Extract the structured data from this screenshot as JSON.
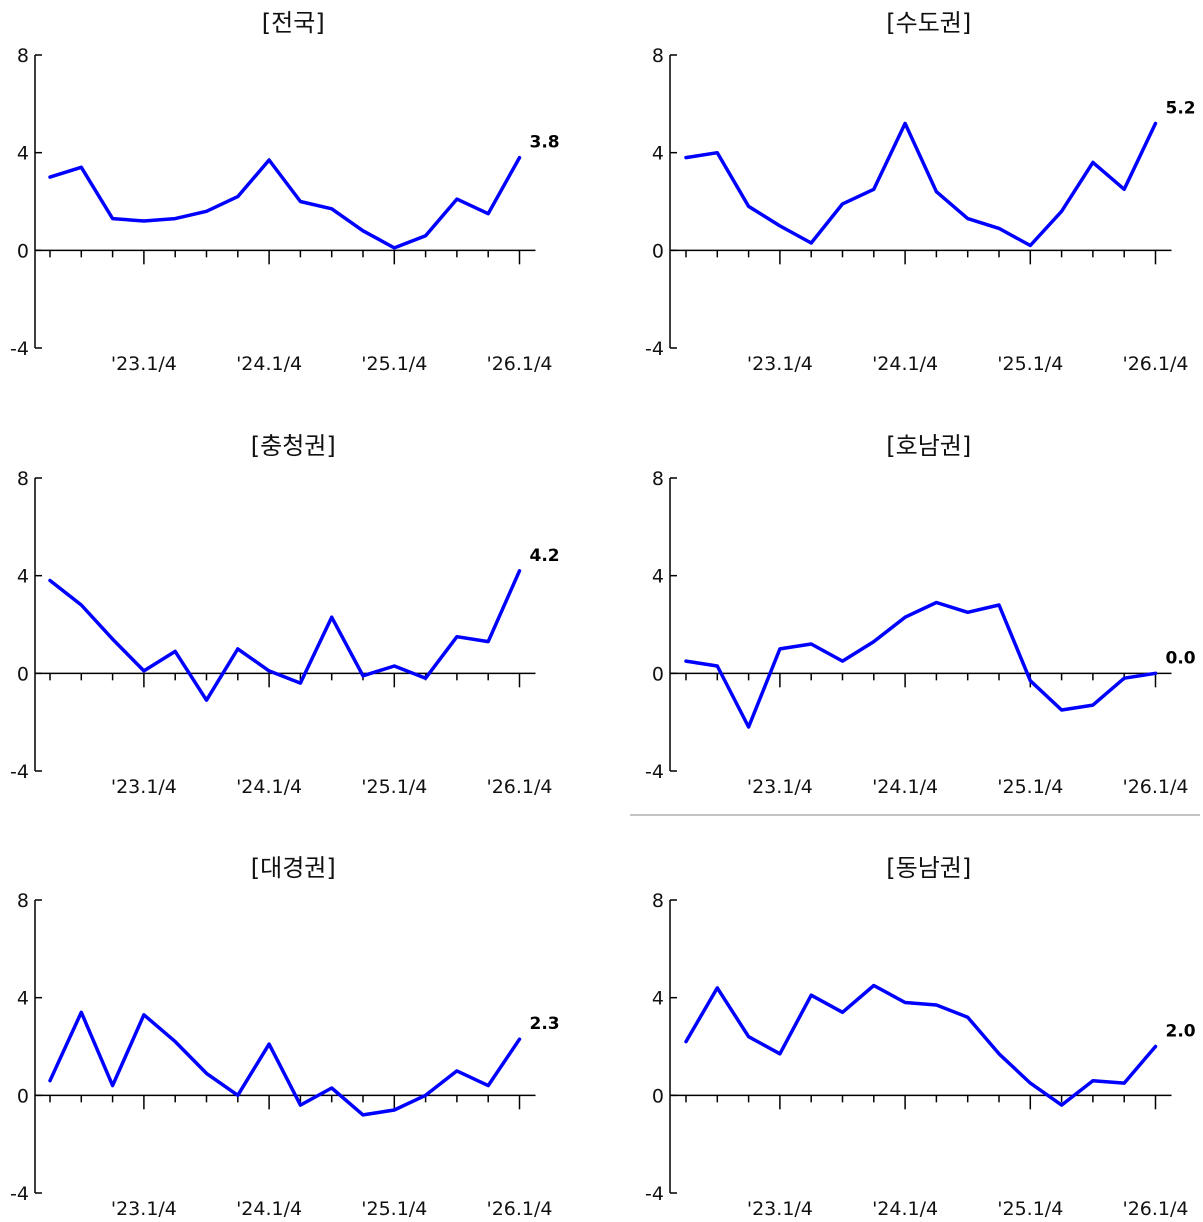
{
  "chart_data": [
    {
      "type": "line",
      "title": "[전국]",
      "ylim": [
        -4,
        8
      ],
      "yticks": [
        "8",
        "4",
        "0",
        "-4"
      ],
      "x": [
        "'22.2/4",
        "'22.3/4",
        "'22.4/4",
        "'23.1/4",
        "'23.2/4",
        "'23.3/4",
        "'23.4/4",
        "'24.1/4",
        "'24.2/4",
        "'24.3/4",
        "'24.4/4",
        "'25.1/4",
        "'25.2/4",
        "'25.3/4",
        "'25.4/4",
        "'26.1/4"
      ],
      "xticklabels": [
        "'23.1/4",
        "'24.1/4",
        "'25.1/4",
        "'26.1/4"
      ],
      "values": [
        3.0,
        3.4,
        1.3,
        1.2,
        1.3,
        1.6,
        2.2,
        3.7,
        2.0,
        1.7,
        0.8,
        0.1,
        0.6,
        2.1,
        1.5,
        3.8
      ],
      "end_label": "3.8"
    },
    {
      "type": "line",
      "title": "[수도권]",
      "ylim": [
        -4,
        8
      ],
      "yticks": [
        "8",
        "4",
        "0",
        "-4"
      ],
      "x": [
        "'22.2/4",
        "'22.3/4",
        "'22.4/4",
        "'23.1/4",
        "'23.2/4",
        "'23.3/4",
        "'23.4/4",
        "'24.1/4",
        "'24.2/4",
        "'24.3/4",
        "'24.4/4",
        "'25.1/4",
        "'25.2/4",
        "'25.3/4",
        "'25.4/4",
        "'26.1/4"
      ],
      "xticklabels": [
        "'23.1/4",
        "'24.1/4",
        "'25.1/4",
        "'26.1/4"
      ],
      "values": [
        3.8,
        4.0,
        1.8,
        1.0,
        0.3,
        1.9,
        2.5,
        5.2,
        2.4,
        1.3,
        0.9,
        0.2,
        1.6,
        3.6,
        2.5,
        5.2
      ],
      "end_label": "5.2"
    },
    {
      "type": "line",
      "title": "[충청권]",
      "ylim": [
        -4,
        8
      ],
      "yticks": [
        "8",
        "4",
        "0",
        "-4"
      ],
      "x": [
        "'22.2/4",
        "'22.3/4",
        "'22.4/4",
        "'23.1/4",
        "'23.2/4",
        "'23.3/4",
        "'23.4/4",
        "'24.1/4",
        "'24.2/4",
        "'24.3/4",
        "'24.4/4",
        "'25.1/4",
        "'25.2/4",
        "'25.3/4",
        "'25.4/4",
        "'26.1/4"
      ],
      "xticklabels": [
        "'23.1/4",
        "'24.1/4",
        "'25.1/4",
        "'26.1/4"
      ],
      "values": [
        3.8,
        2.8,
        1.4,
        0.1,
        0.9,
        -1.1,
        1.0,
        0.1,
        -0.4,
        2.3,
        -0.1,
        0.3,
        -0.2,
        1.5,
        1.3,
        4.2
      ],
      "end_label": "4.2"
    },
    {
      "type": "line",
      "title": "[호남권]",
      "ylim": [
        -4,
        8
      ],
      "yticks": [
        "8",
        "4",
        "0",
        "-4"
      ],
      "x": [
        "'22.2/4",
        "'22.3/4",
        "'22.4/4",
        "'23.1/4",
        "'23.2/4",
        "'23.3/4",
        "'23.4/4",
        "'24.1/4",
        "'24.2/4",
        "'24.3/4",
        "'24.4/4",
        "'25.1/4",
        "'25.2/4",
        "'25.3/4",
        "'25.4/4",
        "'26.1/4"
      ],
      "xticklabels": [
        "'23.1/4",
        "'24.1/4",
        "'25.1/4",
        "'26.1/4"
      ],
      "values": [
        0.5,
        0.3,
        -2.2,
        1.0,
        1.2,
        0.5,
        1.3,
        2.3,
        2.9,
        2.5,
        2.8,
        -0.3,
        -1.5,
        -1.3,
        -0.2,
        0.0
      ],
      "end_label": "0.0"
    },
    {
      "type": "line",
      "title": "[대경권]",
      "ylim": [
        -4,
        8
      ],
      "yticks": [
        "8",
        "4",
        "0",
        "-4"
      ],
      "x": [
        "'22.2/4",
        "'22.3/4",
        "'22.4/4",
        "'23.1/4",
        "'23.2/4",
        "'23.3/4",
        "'23.4/4",
        "'24.1/4",
        "'24.2/4",
        "'24.3/4",
        "'24.4/4",
        "'25.1/4",
        "'25.2/4",
        "'25.3/4",
        "'25.4/4",
        "'26.1/4"
      ],
      "xticklabels": [
        "'23.1/4",
        "'24.1/4",
        "'25.1/4",
        "'26.1/4"
      ],
      "values": [
        0.6,
        3.4,
        0.4,
        3.3,
        2.2,
        0.9,
        0.0,
        2.1,
        -0.4,
        0.3,
        -0.8,
        -0.6,
        0.0,
        1.0,
        0.4,
        2.3
      ],
      "end_label": "2.3"
    },
    {
      "type": "line",
      "title": "[동남권]",
      "ylim": [
        -4,
        8
      ],
      "yticks": [
        "8",
        "4",
        "0",
        "-4"
      ],
      "x": [
        "'22.2/4",
        "'22.3/4",
        "'22.4/4",
        "'23.1/4",
        "'23.2/4",
        "'23.3/4",
        "'23.4/4",
        "'24.1/4",
        "'24.2/4",
        "'24.3/4",
        "'24.4/4",
        "'25.1/4",
        "'25.2/4",
        "'25.3/4",
        "'25.4/4",
        "'26.1/4"
      ],
      "xticklabels": [
        "'23.1/4",
        "'24.1/4",
        "'25.1/4",
        "'26.1/4"
      ],
      "values": [
        2.2,
        4.4,
        2.4,
        1.7,
        4.1,
        3.4,
        4.5,
        3.8,
        3.7,
        3.2,
        1.7,
        0.5,
        -0.4,
        0.6,
        0.5,
        2.0
      ],
      "end_label": "2.0"
    }
  ],
  "colors": {
    "line": "#0000ff",
    "axis": "#000000"
  }
}
